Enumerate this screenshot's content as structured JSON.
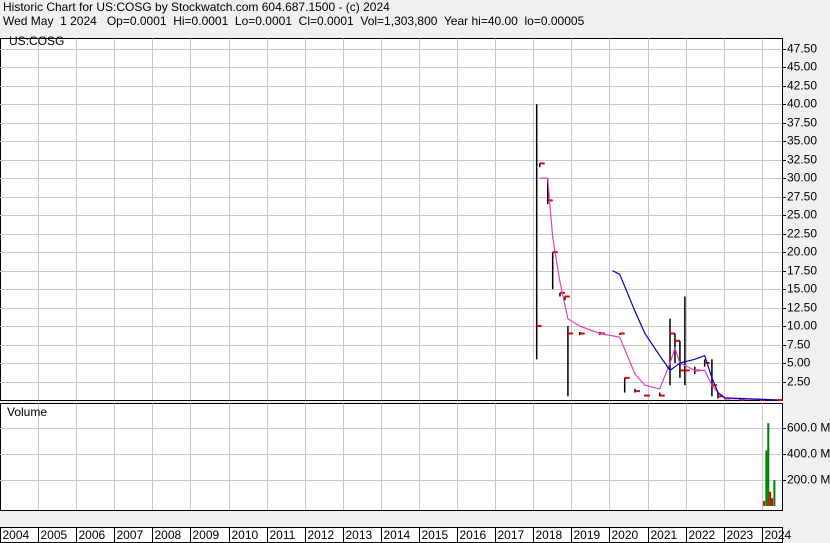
{
  "header": {
    "title": "Historic Chart for US:COSG by Stockwatch.com 604.687.1500 - (c) 2024",
    "summary": "Wed May  1 2024   Op=0.0001  Hi=0.0001  Lo=0.0001  Cl=0.0001  Vol=1,303,800  Year hi=40.00  lo=0.00005"
  },
  "chart_data": [
    {
      "type": "ohlc",
      "label": "US:COSG",
      "bar_color": "#000000",
      "close_color": "#e00000",
      "x": [
        2018.09,
        2018.17,
        2018.38,
        2018.51,
        2018.7,
        2018.83,
        2018.91,
        2019.22,
        2019.75,
        2020.27,
        2020.4,
        2020.67,
        2020.93,
        2021.32,
        2021.59,
        2021.72,
        2021.85,
        2021.98,
        2022.24,
        2022.5,
        2022.69,
        2022.85,
        2023.03,
        2023.42,
        2023.95,
        2024.42
      ],
      "high": [
        40,
        32,
        30,
        20,
        14.5,
        14,
        10,
        9.2,
        9.2,
        9,
        3,
        1.5,
        0.7,
        1,
        11,
        9,
        8,
        14,
        4.5,
        5.5,
        5.5,
        1,
        0.3,
        0.1,
        0.0001,
        0.0001
      ],
      "low": [
        5.5,
        31.5,
        26.5,
        15,
        14,
        13.5,
        0.5,
        8.8,
        8.8,
        8.8,
        1,
        1,
        0.5,
        0.5,
        2,
        5,
        3,
        2,
        3.5,
        4.5,
        0.5,
        0.2,
        0.1,
        0.0001,
        0.0001,
        0.0001
      ],
      "close": [
        10,
        32,
        27,
        20,
        14.5,
        14,
        9,
        9,
        9,
        9,
        3,
        1.2,
        0.6,
        0.6,
        9,
        8,
        4,
        4,
        4,
        5,
        2,
        0.5,
        0.2,
        0.05,
        0.0001,
        0.0001
      ],
      "averages": [
        {
          "color": "#e040c0",
          "x": [
            2018.17,
            2018.38,
            2018.51,
            2018.7,
            2018.91,
            2019.22,
            2019.75,
            2020.27,
            2020.67,
            2020.93,
            2021.32,
            2021.59,
            2021.72,
            2021.85,
            2022.24,
            2022.5,
            2022.69,
            2022.85,
            2023.03,
            2024.42
          ],
          "values": [
            30,
            30,
            22,
            16,
            11,
            10,
            9,
            8.5,
            3.5,
            2,
            1.5,
            5,
            7,
            5,
            4,
            4,
            2,
            1,
            0.2,
            0
          ]
        },
        {
          "color": "#0000c0",
          "x": [
            2020.08,
            2020.27,
            2020.67,
            2020.93,
            2021.32,
            2021.59,
            2021.85,
            2022.24,
            2022.5,
            2022.69,
            2022.85,
            2023.03,
            2024.42
          ],
          "values": [
            17.5,
            17,
            12,
            9,
            6,
            4,
            5,
            5.5,
            6,
            3,
            1,
            0.3,
            0
          ]
        }
      ],
      "xlim": [
        2004,
        2024.53
      ],
      "xticks": [
        2004,
        2005,
        2006,
        2007,
        2008,
        2009,
        2010,
        2011,
        2012,
        2013,
        2014,
        2015,
        2016,
        2017,
        2018,
        2019,
        2020,
        2021,
        2022,
        2023,
        2024
      ],
      "ylim": [
        0,
        48.9
      ],
      "yticks": [
        {
          "value": 2.5,
          "label": "2.50"
        },
        {
          "value": 5,
          "label": "5.00"
        },
        {
          "value": 7.5,
          "label": "7.50"
        },
        {
          "value": 10,
          "label": "10.00"
        },
        {
          "value": 12.5,
          "label": "12.50"
        },
        {
          "value": 15,
          "label": "15.00"
        },
        {
          "value": 17.5,
          "label": "17.50"
        },
        {
          "value": 20,
          "label": "20.00"
        },
        {
          "value": 22.5,
          "label": "22.50"
        },
        {
          "value": 25,
          "label": "25.00"
        },
        {
          "value": 27.5,
          "label": "27.50"
        },
        {
          "value": 30,
          "label": "30.00"
        },
        {
          "value": 32.5,
          "label": "32.50"
        },
        {
          "value": 35,
          "label": "35.00"
        },
        {
          "value": 37.5,
          "label": "37.50"
        },
        {
          "value": 40,
          "label": "40.00"
        },
        {
          "value": 42.5,
          "label": "42.50"
        },
        {
          "value": 45,
          "label": "45.00"
        },
        {
          "value": 47.5,
          "label": "47.50"
        }
      ],
      "grid": true
    },
    {
      "type": "bar",
      "label": "Volume",
      "x": [
        2024.06,
        2024.12,
        2024.17,
        2024.22,
        2024.27,
        2024.33
      ],
      "values": [
        40000000,
        430000000,
        640000000,
        110000000,
        60000000,
        200000000
      ],
      "colors": [
        "#e00000",
        "#008000",
        "#008000",
        "#e00000",
        "#e00000",
        "#008000"
      ],
      "xlim": [
        2004,
        2024.53
      ],
      "ylim": [
        0,
        792000000
      ],
      "yticks": [
        {
          "value": 200000000,
          "label": "200.0 M"
        },
        {
          "value": 400000000,
          "label": "400.0 M"
        },
        {
          "value": 600000000,
          "label": "600.0 M"
        }
      ],
      "grid": true
    }
  ]
}
